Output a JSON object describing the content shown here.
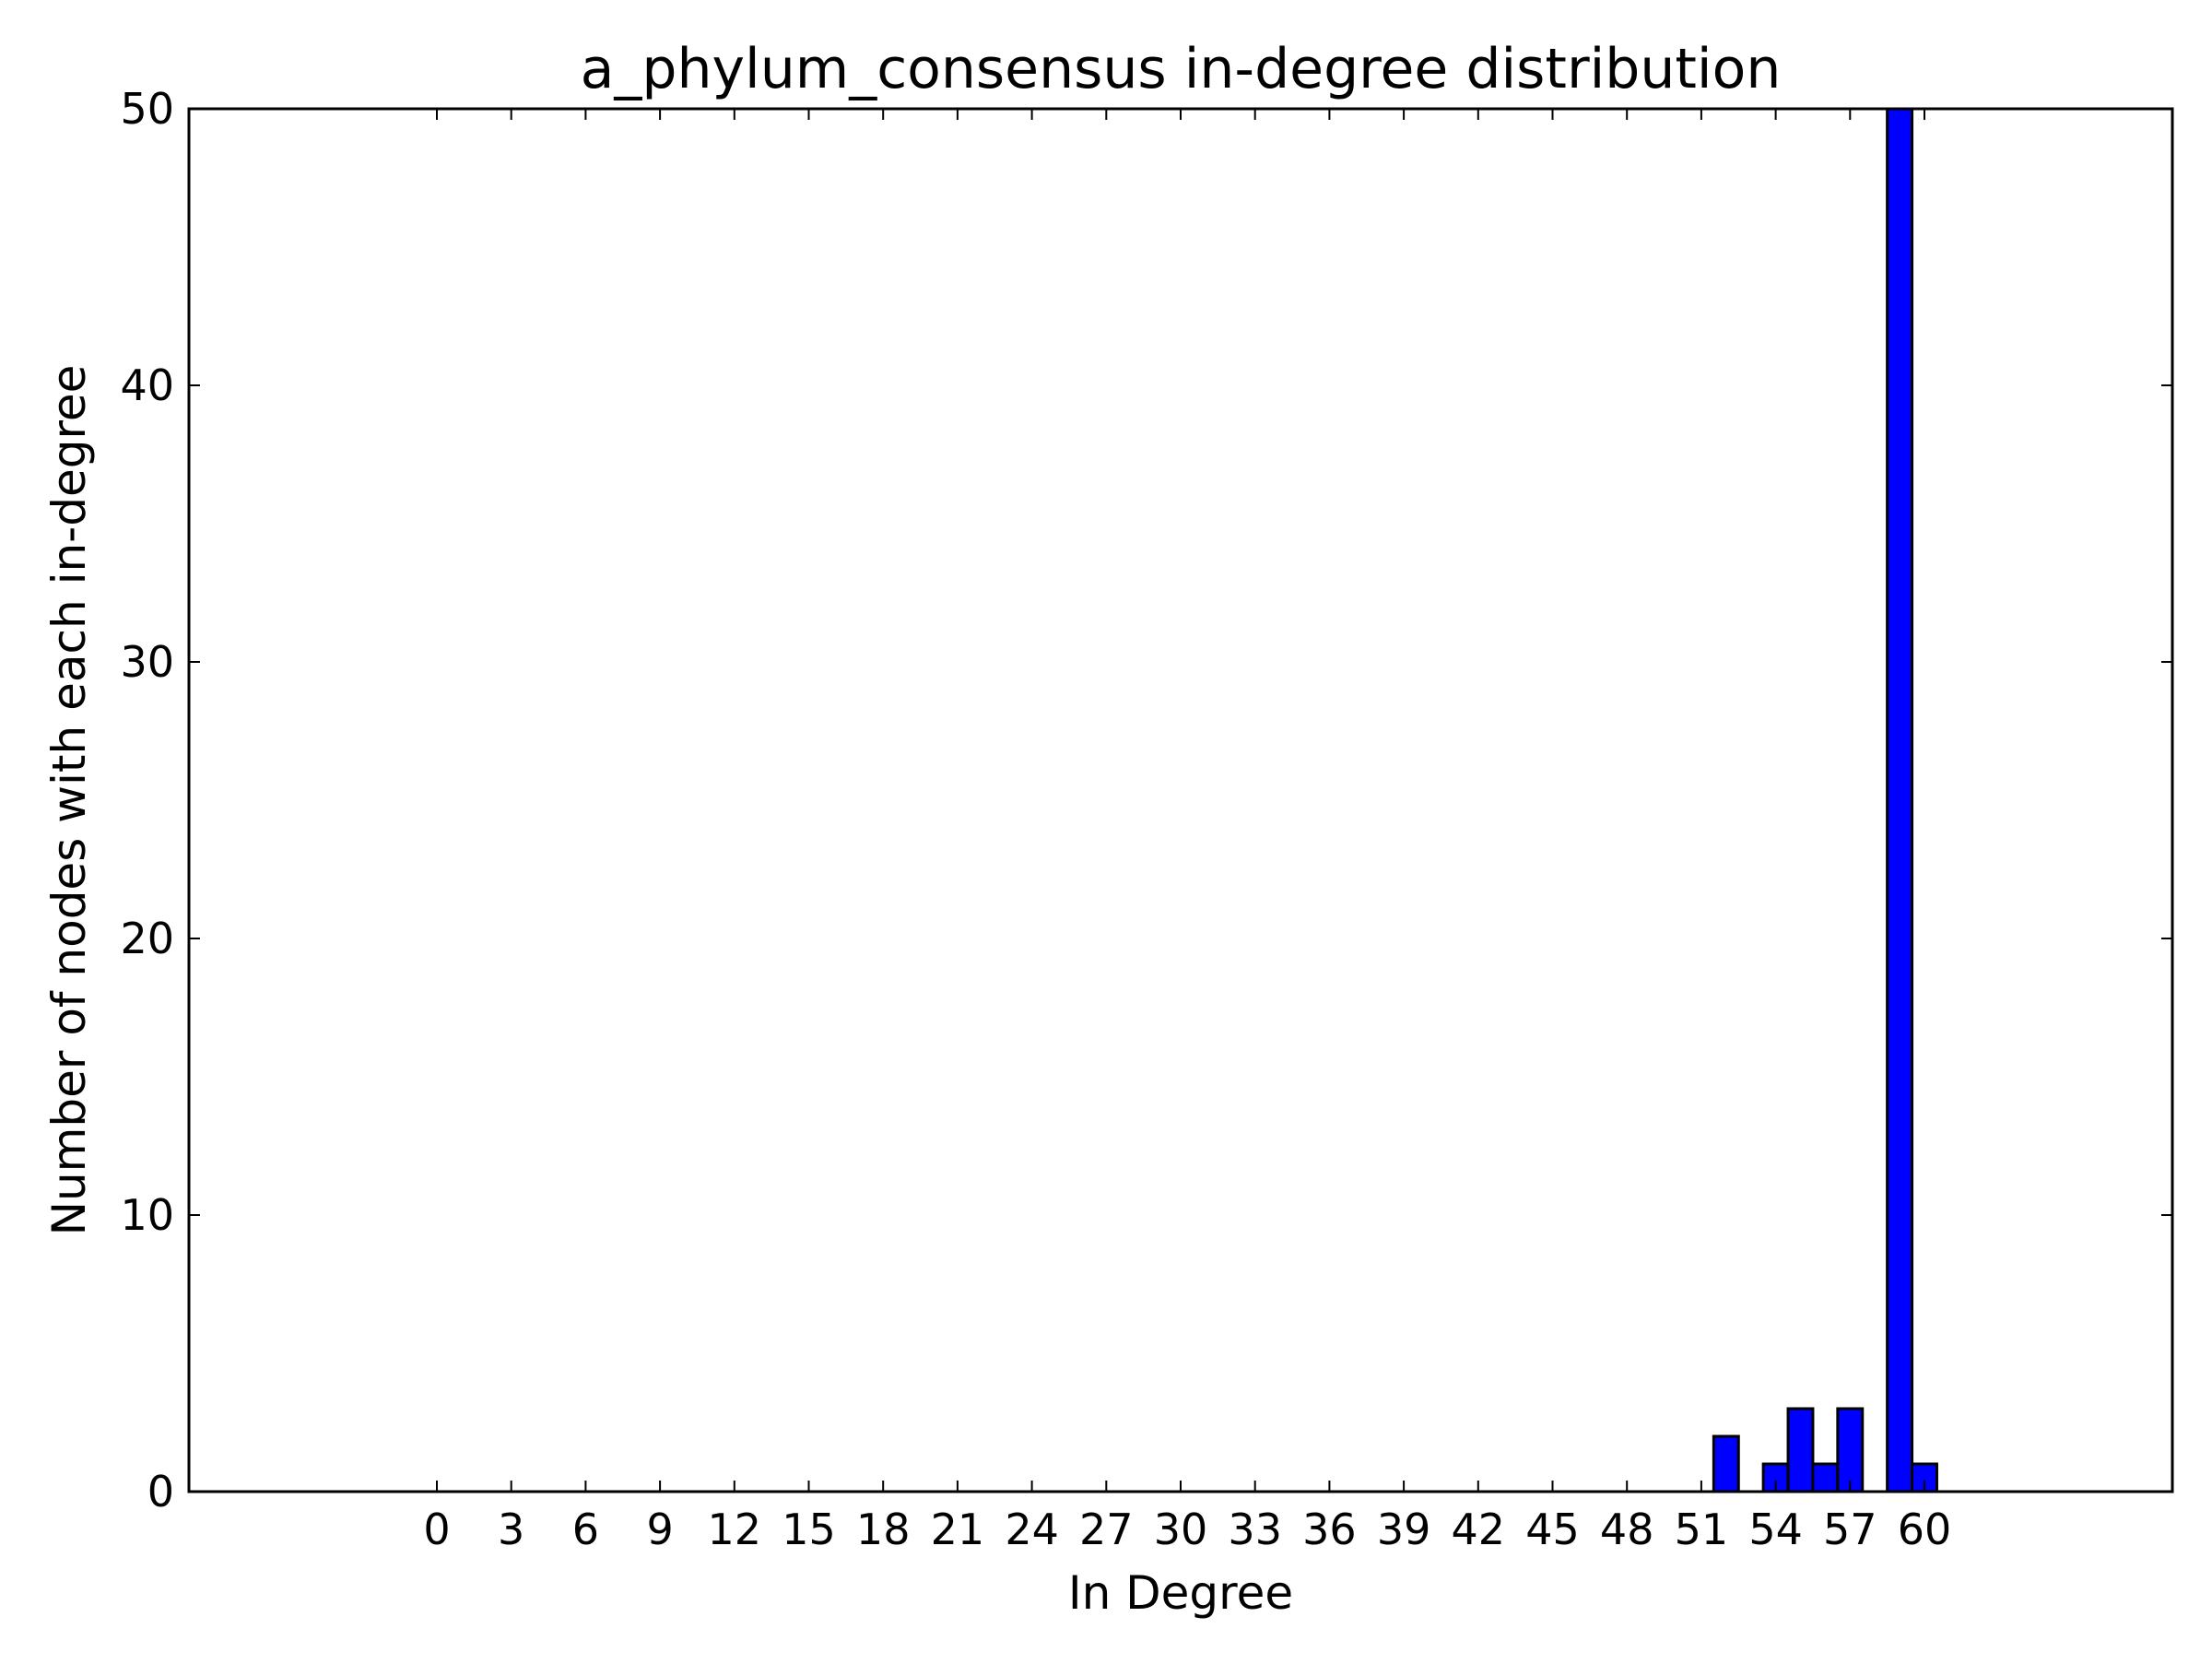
{
  "chart_data": {
    "type": "bar",
    "title": "a_phylum_consensus in-degree distribution",
    "xlabel": "In Degree",
    "ylabel": "Number of nodes with each in-degree",
    "xlim": [
      -10,
      70
    ],
    "ylim": [
      0,
      50
    ],
    "x_ticks": [
      0,
      3,
      6,
      9,
      12,
      15,
      18,
      21,
      24,
      27,
      30,
      33,
      36,
      39,
      42,
      45,
      48,
      51,
      54,
      57,
      60
    ],
    "x_tick_labels": [
      "0",
      "3",
      "6",
      "9",
      "12",
      "15",
      "18",
      "21",
      "24",
      "27",
      "30",
      "33",
      "36",
      "39",
      "42",
      "45",
      "48",
      "51",
      "54",
      "57",
      "60"
    ],
    "y_ticks": [
      0,
      10,
      20,
      30,
      40,
      50
    ],
    "y_tick_labels": [
      "0",
      "10",
      "20",
      "30",
      "40",
      "50"
    ],
    "grid": false,
    "bar_color": "#0000ff",
    "bar_edge_color": "#000000",
    "bars": [
      {
        "x": 52,
        "value": 2
      },
      {
        "x": 54,
        "value": 1
      },
      {
        "x": 55,
        "value": 3
      },
      {
        "x": 56,
        "value": 1
      },
      {
        "x": 57,
        "value": 3
      },
      {
        "x": 59,
        "value": 50
      },
      {
        "x": 60,
        "value": 1
      }
    ]
  }
}
